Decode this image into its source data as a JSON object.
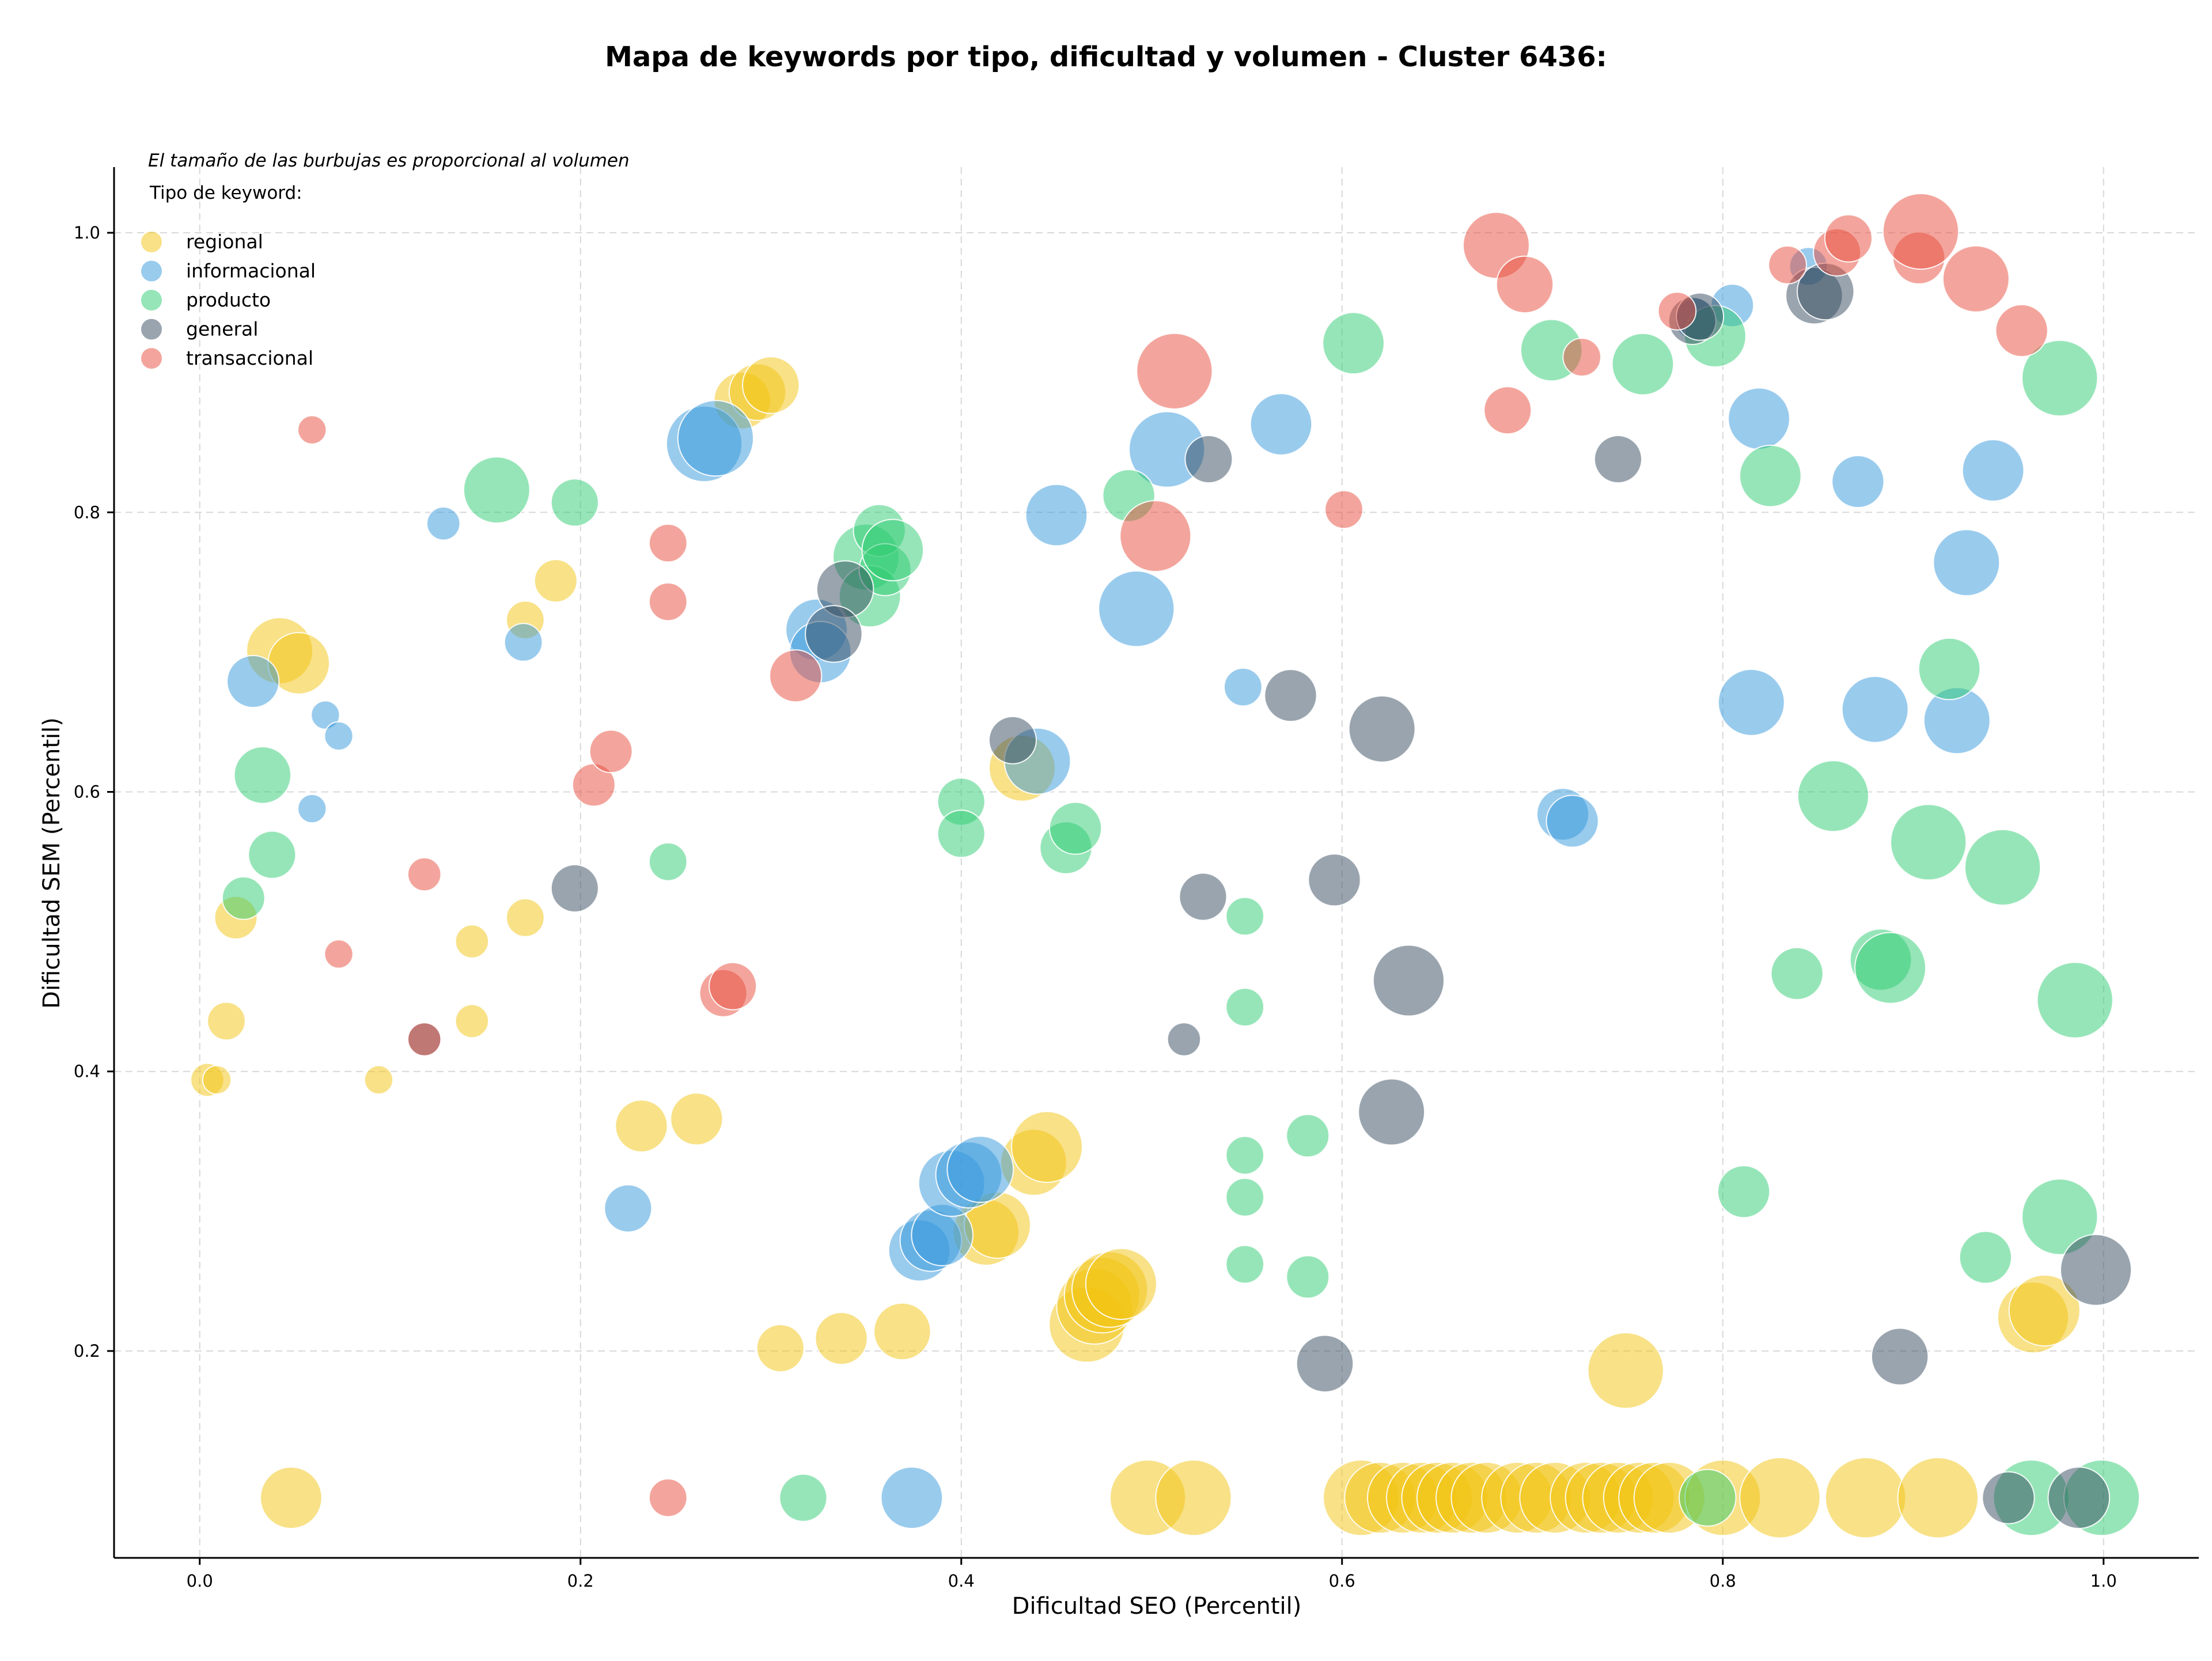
{
  "chart_data": {
    "type": "scatter",
    "title": "Mapa de keywords por tipo, dificultad y volumen - Cluster 6436:",
    "xlabel": "Dificultad SEO (Percentil)",
    "ylabel": "Dificultad SEM (Percentil)",
    "note": "El tamaño de las burbujas es proporcional al volumen",
    "legend_title": "Tipo de keyword:",
    "legend_position": "top-left",
    "grid": true,
    "xlim": [
      -0.045,
      1.05
    ],
    "ylim": [
      0.052,
      1.047
    ],
    "xticks": [
      0.0,
      0.2,
      0.4,
      0.6,
      0.8,
      1.0
    ],
    "yticks": [
      0.2,
      0.4,
      0.6,
      0.8,
      1.0
    ],
    "xtick_labels": [
      "0.0",
      "0.2",
      "0.4",
      "0.6",
      "0.8",
      "1.0"
    ],
    "ytick_labels": [
      "0.2",
      "0.4",
      "0.6",
      "0.8",
      "1.0"
    ],
    "size_note": "s = relative bubble size (volume)",
    "series": [
      {
        "name": "regional",
        "color": "#f1c40f",
        "points": [
          {
            "x": 0.004,
            "y": 0.394,
            "s": 0.7
          },
          {
            "x": 0.009,
            "y": 0.394,
            "s": 0.6
          },
          {
            "x": 0.014,
            "y": 0.436,
            "s": 0.8
          },
          {
            "x": 0.019,
            "y": 0.51,
            "s": 0.9
          },
          {
            "x": 0.042,
            "y": 0.701,
            "s": 1.4
          },
          {
            "x": 0.052,
            "y": 0.692,
            "s": 1.3
          },
          {
            "x": 0.048,
            "y": 0.095,
            "s": 1.3
          },
          {
            "x": 0.094,
            "y": 0.394,
            "s": 0.6
          },
          {
            "x": 0.143,
            "y": 0.493,
            "s": 0.7
          },
          {
            "x": 0.143,
            "y": 0.436,
            "s": 0.7
          },
          {
            "x": 0.171,
            "y": 0.723,
            "s": 0.8
          },
          {
            "x": 0.171,
            "y": 0.51,
            "s": 0.8
          },
          {
            "x": 0.187,
            "y": 0.751,
            "s": 0.9
          },
          {
            "x": 0.232,
            "y": 0.361,
            "s": 1.1
          },
          {
            "x": 0.261,
            "y": 0.366,
            "s": 1.1
          },
          {
            "x": 0.285,
            "y": 0.88,
            "s": 1.2
          },
          {
            "x": 0.293,
            "y": 0.886,
            "s": 1.2
          },
          {
            "x": 0.3,
            "y": 0.891,
            "s": 1.2
          },
          {
            "x": 0.305,
            "y": 0.202,
            "s": 1.0
          },
          {
            "x": 0.337,
            "y": 0.209,
            "s": 1.1
          },
          {
            "x": 0.369,
            "y": 0.214,
            "s": 1.2
          },
          {
            "x": 0.413,
            "y": 0.285,
            "s": 1.4
          },
          {
            "x": 0.419,
            "y": 0.29,
            "s": 1.4
          },
          {
            "x": 0.432,
            "y": 0.617,
            "s": 1.4
          },
          {
            "x": 0.438,
            "y": 0.335,
            "s": 1.4
          },
          {
            "x": 0.445,
            "y": 0.346,
            "s": 1.5
          },
          {
            "x": 0.466,
            "y": 0.219,
            "s": 1.6
          },
          {
            "x": 0.47,
            "y": 0.232,
            "s": 1.6
          },
          {
            "x": 0.474,
            "y": 0.24,
            "s": 1.6
          },
          {
            "x": 0.478,
            "y": 0.244,
            "s": 1.6
          },
          {
            "x": 0.484,
            "y": 0.248,
            "s": 1.5
          },
          {
            "x": 0.498,
            "y": 0.095,
            "s": 1.6
          },
          {
            "x": 0.522,
            "y": 0.095,
            "s": 1.6
          },
          {
            "x": 0.61,
            "y": 0.095,
            "s": 1.6
          },
          {
            "x": 0.62,
            "y": 0.095,
            "s": 1.5
          },
          {
            "x": 0.632,
            "y": 0.095,
            "s": 1.5
          },
          {
            "x": 0.642,
            "y": 0.095,
            "s": 1.5
          },
          {
            "x": 0.65,
            "y": 0.095,
            "s": 1.5
          },
          {
            "x": 0.658,
            "y": 0.095,
            "s": 1.5
          },
          {
            "x": 0.668,
            "y": 0.095,
            "s": 1.5
          },
          {
            "x": 0.676,
            "y": 0.095,
            "s": 1.5
          },
          {
            "x": 0.692,
            "y": 0.095,
            "s": 1.5
          },
          {
            "x": 0.702,
            "y": 0.095,
            "s": 1.5
          },
          {
            "x": 0.712,
            "y": 0.095,
            "s": 1.5
          },
          {
            "x": 0.728,
            "y": 0.095,
            "s": 1.5
          },
          {
            "x": 0.736,
            "y": 0.095,
            "s": 1.5
          },
          {
            "x": 0.745,
            "y": 0.095,
            "s": 1.5
          },
          {
            "x": 0.756,
            "y": 0.095,
            "s": 1.5
          },
          {
            "x": 0.764,
            "y": 0.095,
            "s": 1.5
          },
          {
            "x": 0.772,
            "y": 0.095,
            "s": 1.5
          },
          {
            "x": 0.749,
            "y": 0.186,
            "s": 1.6
          },
          {
            "x": 0.8,
            "y": 0.095,
            "s": 1.6
          },
          {
            "x": 0.83,
            "y": 0.095,
            "s": 1.7
          },
          {
            "x": 0.875,
            "y": 0.095,
            "s": 1.7
          },
          {
            "x": 0.913,
            "y": 0.095,
            "s": 1.7
          },
          {
            "x": 0.963,
            "y": 0.224,
            "s": 1.5
          },
          {
            "x": 0.969,
            "y": 0.229,
            "s": 1.5
          }
        ]
      },
      {
        "name": "informacional",
        "color": "#3498db",
        "points": [
          {
            "x": 0.028,
            "y": 0.679,
            "s": 1.1
          },
          {
            "x": 0.059,
            "y": 0.588,
            "s": 0.6
          },
          {
            "x": 0.066,
            "y": 0.655,
            "s": 0.6
          },
          {
            "x": 0.073,
            "y": 0.64,
            "s": 0.6
          },
          {
            "x": 0.128,
            "y": 0.792,
            "s": 0.7
          },
          {
            "x": 0.17,
            "y": 0.707,
            "s": 0.8
          },
          {
            "x": 0.225,
            "y": 0.302,
            "s": 1.0
          },
          {
            "x": 0.265,
            "y": 0.849,
            "s": 1.6
          },
          {
            "x": 0.271,
            "y": 0.853,
            "s": 1.6
          },
          {
            "x": 0.324,
            "y": 0.716,
            "s": 1.3
          },
          {
            "x": 0.326,
            "y": 0.7,
            "s": 1.3
          },
          {
            "x": 0.374,
            "y": 0.095,
            "s": 1.3
          },
          {
            "x": 0.378,
            "y": 0.272,
            "s": 1.3
          },
          {
            "x": 0.384,
            "y": 0.279,
            "s": 1.3
          },
          {
            "x": 0.39,
            "y": 0.283,
            "s": 1.3
          },
          {
            "x": 0.395,
            "y": 0.32,
            "s": 1.4
          },
          {
            "x": 0.404,
            "y": 0.326,
            "s": 1.4
          },
          {
            "x": 0.41,
            "y": 0.33,
            "s": 1.4
          },
          {
            "x": 0.44,
            "y": 0.622,
            "s": 1.4
          },
          {
            "x": 0.45,
            "y": 0.798,
            "s": 1.3
          },
          {
            "x": 0.492,
            "y": 0.731,
            "s": 1.6
          },
          {
            "x": 0.508,
            "y": 0.845,
            "s": 1.6
          },
          {
            "x": 0.548,
            "y": 0.675,
            "s": 0.8
          },
          {
            "x": 0.568,
            "y": 0.863,
            "s": 1.3
          },
          {
            "x": 0.716,
            "y": 0.584,
            "s": 1.1
          },
          {
            "x": 0.721,
            "y": 0.579,
            "s": 1.1
          },
          {
            "x": 0.786,
            "y": 0.938,
            "s": 0.9
          },
          {
            "x": 0.805,
            "y": 0.948,
            "s": 0.9
          },
          {
            "x": 0.815,
            "y": 0.664,
            "s": 1.4
          },
          {
            "x": 0.819,
            "y": 0.867,
            "s": 1.3
          },
          {
            "x": 0.845,
            "y": 0.976,
            "s": 0.8
          },
          {
            "x": 0.871,
            "y": 0.822,
            "s": 1.1
          },
          {
            "x": 0.88,
            "y": 0.659,
            "s": 1.4
          },
          {
            "x": 0.923,
            "y": 0.651,
            "s": 1.4
          },
          {
            "x": 0.928,
            "y": 0.764,
            "s": 1.4
          },
          {
            "x": 0.942,
            "y": 0.83,
            "s": 1.3
          }
        ]
      },
      {
        "name": "producto",
        "color": "#2ecc71",
        "points": [
          {
            "x": 0.023,
            "y": 0.524,
            "s": 0.9
          },
          {
            "x": 0.033,
            "y": 0.612,
            "s": 1.2
          },
          {
            "x": 0.038,
            "y": 0.555,
            "s": 1.0
          },
          {
            "x": 0.156,
            "y": 0.816,
            "s": 1.4
          },
          {
            "x": 0.197,
            "y": 0.807,
            "s": 1.0
          },
          {
            "x": 0.246,
            "y": 0.55,
            "s": 0.8
          },
          {
            "x": 0.317,
            "y": 0.095,
            "s": 1.0
          },
          {
            "x": 0.35,
            "y": 0.768,
            "s": 1.4
          },
          {
            "x": 0.352,
            "y": 0.74,
            "s": 1.3
          },
          {
            "x": 0.357,
            "y": 0.787,
            "s": 1.1
          },
          {
            "x": 0.36,
            "y": 0.759,
            "s": 1.1
          },
          {
            "x": 0.364,
            "y": 0.773,
            "s": 1.3
          },
          {
            "x": 0.4,
            "y": 0.593,
            "s": 1.0
          },
          {
            "x": 0.4,
            "y": 0.57,
            "s": 1.0
          },
          {
            "x": 0.455,
            "y": 0.56,
            "s": 1.1
          },
          {
            "x": 0.46,
            "y": 0.574,
            "s": 1.1
          },
          {
            "x": 0.488,
            "y": 0.812,
            "s": 1.1
          },
          {
            "x": 0.549,
            "y": 0.511,
            "s": 0.8
          },
          {
            "x": 0.549,
            "y": 0.446,
            "s": 0.8
          },
          {
            "x": 0.549,
            "y": 0.34,
            "s": 0.8
          },
          {
            "x": 0.549,
            "y": 0.31,
            "s": 0.8
          },
          {
            "x": 0.549,
            "y": 0.262,
            "s": 0.8
          },
          {
            "x": 0.582,
            "y": 0.354,
            "s": 0.9
          },
          {
            "x": 0.582,
            "y": 0.253,
            "s": 0.9
          },
          {
            "x": 0.606,
            "y": 0.921,
            "s": 1.3
          },
          {
            "x": 0.71,
            "y": 0.916,
            "s": 1.3
          },
          {
            "x": 0.758,
            "y": 0.906,
            "s": 1.3
          },
          {
            "x": 0.792,
            "y": 0.095,
            "s": 1.2
          },
          {
            "x": 0.796,
            "y": 0.926,
            "s": 1.3
          },
          {
            "x": 0.811,
            "y": 0.314,
            "s": 1.1
          },
          {
            "x": 0.825,
            "y": 0.826,
            "s": 1.3
          },
          {
            "x": 0.839,
            "y": 0.47,
            "s": 1.1
          },
          {
            "x": 0.858,
            "y": 0.597,
            "s": 1.5
          },
          {
            "x": 0.883,
            "y": 0.48,
            "s": 1.3
          },
          {
            "x": 0.888,
            "y": 0.474,
            "s": 1.5
          },
          {
            "x": 0.908,
            "y": 0.564,
            "s": 1.6
          },
          {
            "x": 0.919,
            "y": 0.688,
            "s": 1.3
          },
          {
            "x": 0.938,
            "y": 0.267,
            "s": 1.1
          },
          {
            "x": 0.947,
            "y": 0.546,
            "s": 1.6
          },
          {
            "x": 0.962,
            "y": 0.095,
            "s": 1.6
          },
          {
            "x": 0.977,
            "y": 0.296,
            "s": 1.6
          },
          {
            "x": 0.977,
            "y": 0.896,
            "s": 1.6
          },
          {
            "x": 0.985,
            "y": 0.451,
            "s": 1.6
          },
          {
            "x": 0.999,
            "y": 0.095,
            "s": 1.6
          }
        ]
      },
      {
        "name": "general",
        "color": "#34495e",
        "points": [
          {
            "x": 0.118,
            "y": 0.423,
            "s": 0.7
          },
          {
            "x": 0.197,
            "y": 0.531,
            "s": 1.0
          },
          {
            "x": 0.339,
            "y": 0.745,
            "s": 1.2
          },
          {
            "x": 0.333,
            "y": 0.713,
            "s": 1.2
          },
          {
            "x": 0.427,
            "y": 0.637,
            "s": 1.0
          },
          {
            "x": 0.517,
            "y": 0.423,
            "s": 0.7
          },
          {
            "x": 0.527,
            "y": 0.525,
            "s": 1.0
          },
          {
            "x": 0.53,
            "y": 0.838,
            "s": 1.0
          },
          {
            "x": 0.573,
            "y": 0.669,
            "s": 1.1
          },
          {
            "x": 0.591,
            "y": 0.191,
            "s": 1.2
          },
          {
            "x": 0.596,
            "y": 0.537,
            "s": 1.1
          },
          {
            "x": 0.621,
            "y": 0.645,
            "s": 1.4
          },
          {
            "x": 0.626,
            "y": 0.371,
            "s": 1.4
          },
          {
            "x": 0.635,
            "y": 0.465,
            "s": 1.5
          },
          {
            "x": 0.745,
            "y": 0.838,
            "s": 1.0
          },
          {
            "x": 0.784,
            "y": 0.937,
            "s": 1.0
          },
          {
            "x": 0.788,
            "y": 0.94,
            "s": 1.0
          },
          {
            "x": 0.848,
            "y": 0.955,
            "s": 1.2
          },
          {
            "x": 0.854,
            "y": 0.958,
            "s": 1.2
          },
          {
            "x": 0.893,
            "y": 0.196,
            "s": 1.2
          },
          {
            "x": 0.95,
            "y": 0.095,
            "s": 1.1
          },
          {
            "x": 0.987,
            "y": 0.095,
            "s": 1.3
          },
          {
            "x": 0.996,
            "y": 0.258,
            "s": 1.5
          }
        ]
      },
      {
        "name": "transaccional",
        "color": "#e74c3c",
        "points": [
          {
            "x": 0.059,
            "y": 0.859,
            "s": 0.6
          },
          {
            "x": 0.073,
            "y": 0.484,
            "s": 0.6
          },
          {
            "x": 0.118,
            "y": 0.541,
            "s": 0.7
          },
          {
            "x": 0.118,
            "y": 0.423,
            "s": 0.7
          },
          {
            "x": 0.207,
            "y": 0.605,
            "s": 0.9
          },
          {
            "x": 0.216,
            "y": 0.629,
            "s": 0.9
          },
          {
            "x": 0.246,
            "y": 0.778,
            "s": 0.8
          },
          {
            "x": 0.246,
            "y": 0.736,
            "s": 0.8
          },
          {
            "x": 0.246,
            "y": 0.095,
            "s": 0.8
          },
          {
            "x": 0.275,
            "y": 0.456,
            "s": 1.0
          },
          {
            "x": 0.28,
            "y": 0.461,
            "s": 1.0
          },
          {
            "x": 0.313,
            "y": 0.683,
            "s": 1.1
          },
          {
            "x": 0.502,
            "y": 0.783,
            "s": 1.5
          },
          {
            "x": 0.512,
            "y": 0.901,
            "s": 1.6
          },
          {
            "x": 0.601,
            "y": 0.802,
            "s": 0.8
          },
          {
            "x": 0.681,
            "y": 0.991,
            "s": 1.4
          },
          {
            "x": 0.687,
            "y": 0.873,
            "s": 1.0
          },
          {
            "x": 0.696,
            "y": 0.963,
            "s": 1.2
          },
          {
            "x": 0.726,
            "y": 0.911,
            "s": 0.8
          },
          {
            "x": 0.776,
            "y": 0.944,
            "s": 0.8
          },
          {
            "x": 0.834,
            "y": 0.977,
            "s": 0.8
          },
          {
            "x": 0.86,
            "y": 0.986,
            "s": 1.0
          },
          {
            "x": 0.866,
            "y": 0.996,
            "s": 1.0
          },
          {
            "x": 0.903,
            "y": 0.982,
            "s": 1.1
          },
          {
            "x": 0.904,
            "y": 1.001,
            "s": 1.6
          },
          {
            "x": 0.933,
            "y": 0.967,
            "s": 1.4
          },
          {
            "x": 0.957,
            "y": 0.93,
            "s": 1.1
          }
        ]
      }
    ]
  }
}
